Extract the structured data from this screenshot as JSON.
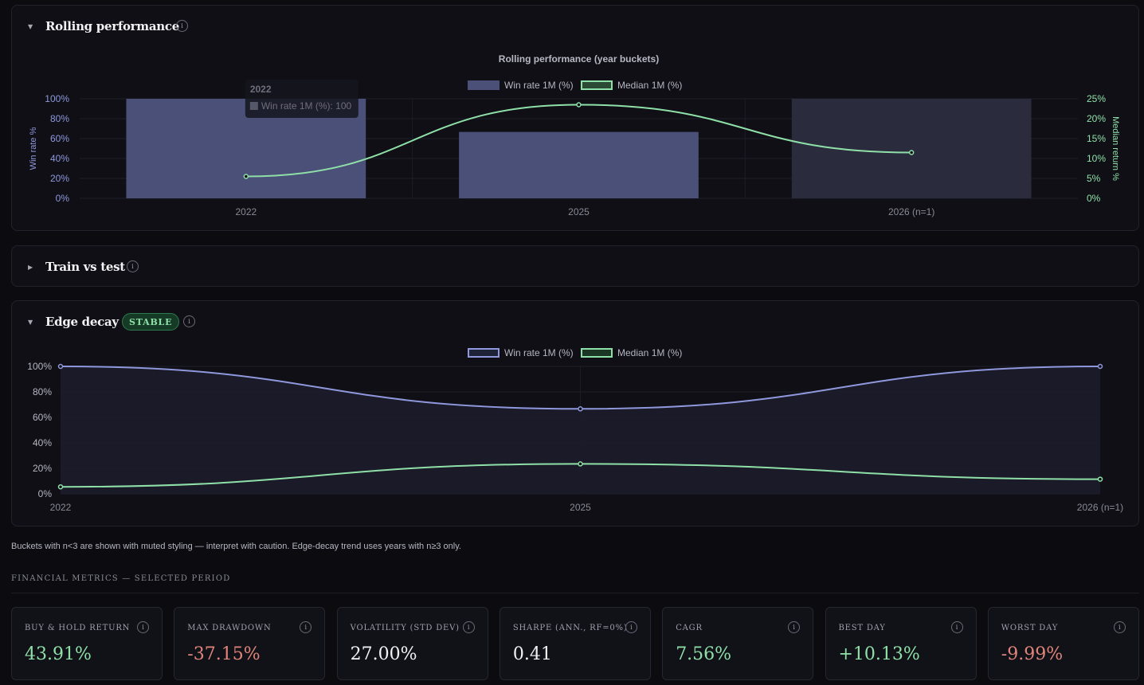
{
  "rolling": {
    "title": "Rolling performance",
    "info": "i",
    "chart_data": {
      "type": "bar",
      "title": "Rolling performance (year buckets)",
      "categories": [
        "2022",
        "2025",
        "2026 (n=1)"
      ],
      "series": [
        {
          "name": "Win rate 1M (%)",
          "type": "bar",
          "axis": "left",
          "values": [
            100,
            66.7,
            100
          ]
        },
        {
          "name": "Median 1M (%)",
          "type": "line",
          "axis": "right",
          "values": [
            5.5,
            23.5,
            11.5
          ]
        }
      ],
      "ylabel": "Win rate %",
      "y2label": "Median return %",
      "ylim": [
        0,
        100
      ],
      "y2lim": [
        0,
        25
      ],
      "yticks": [
        "0%",
        "20%",
        "40%",
        "60%",
        "80%",
        "100%"
      ],
      "y2ticks": [
        "0%",
        "5%",
        "10%",
        "15%",
        "20%",
        "25%"
      ],
      "legend": "top-center",
      "tooltip": {
        "title": "2022",
        "label": "Win rate 1M (%): 100"
      },
      "colors": {
        "bar": "#4a5078",
        "bar_muted": "#2a2c3e",
        "line": "#8fe0a8"
      }
    }
  },
  "train": {
    "title": "Train vs test",
    "info": "i"
  },
  "edge": {
    "title": "Edge decay",
    "badge": "STABLE",
    "info": "i",
    "chart_data": {
      "type": "line",
      "categories": [
        "2022",
        "2025",
        "2026 (n=1)"
      ],
      "series": [
        {
          "name": "Win rate 1M (%)",
          "values": [
            100,
            66.7,
            100
          ]
        },
        {
          "name": "Median 1M (%)",
          "values": [
            5.5,
            23.5,
            11.5
          ]
        }
      ],
      "ylim": [
        0,
        100
      ],
      "yticks": [
        "0%",
        "20%",
        "40%",
        "60%",
        "80%",
        "100%"
      ],
      "legend": "top-center",
      "colors": {
        "win": "#8f98dc",
        "median": "#8fe0a8",
        "fill": "#1c1c2a"
      }
    }
  },
  "note": "Buckets with n<3 are shown with muted styling — interpret with caution. Edge-decay trend uses years with n≥3 only.",
  "metrics_title": "FINANCIAL METRICS — SELECTED PERIOD",
  "metrics": [
    {
      "label": "BUY & HOLD RETURN",
      "value": "43.91%",
      "color": "#8fe0a8"
    },
    {
      "label": "MAX DRAWDOWN",
      "value": "-37.15%",
      "color": "#e0857a"
    },
    {
      "label": "VOLATILITY (STD DEV)",
      "value": "27.00%",
      "color": "#f2f2f5"
    },
    {
      "label": "SHARPE (ANN., RF=0%)",
      "value": "0.41",
      "color": "#f2f2f5"
    },
    {
      "label": "CAGR",
      "value": "7.56%",
      "color": "#8fe0a8"
    },
    {
      "label": "BEST DAY",
      "value": "+10.13%",
      "color": "#8fe0a8"
    },
    {
      "label": "WORST DAY",
      "value": "-9.99%",
      "color": "#e0857a"
    }
  ]
}
